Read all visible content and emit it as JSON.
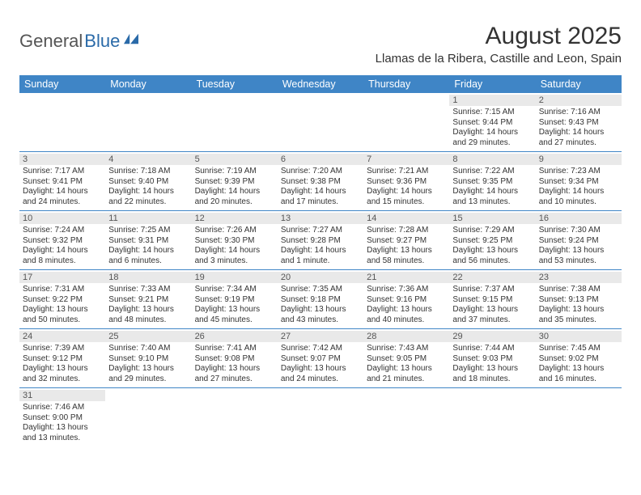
{
  "logo": {
    "part1": "General",
    "part2": "Blue"
  },
  "title": "August 2025",
  "subtitle": "Llamas de la Ribera, Castille and Leon, Spain",
  "colors": {
    "header_bg": "#3f85c6",
    "header_text": "#ffffff",
    "daynum_bg": "#e9e9e9",
    "border": "#3f85c6",
    "text": "#333333",
    "logo_gray": "#555555",
    "logo_blue": "#2a6aa8"
  },
  "dayNames": [
    "Sunday",
    "Monday",
    "Tuesday",
    "Wednesday",
    "Thursday",
    "Friday",
    "Saturday"
  ],
  "weeks": [
    [
      null,
      null,
      null,
      null,
      null,
      {
        "n": "1",
        "sr": "Sunrise: 7:15 AM",
        "ss": "Sunset: 9:44 PM",
        "d1": "Daylight: 14 hours",
        "d2": "and 29 minutes."
      },
      {
        "n": "2",
        "sr": "Sunrise: 7:16 AM",
        "ss": "Sunset: 9:43 PM",
        "d1": "Daylight: 14 hours",
        "d2": "and 27 minutes."
      }
    ],
    [
      {
        "n": "3",
        "sr": "Sunrise: 7:17 AM",
        "ss": "Sunset: 9:41 PM",
        "d1": "Daylight: 14 hours",
        "d2": "and 24 minutes."
      },
      {
        "n": "4",
        "sr": "Sunrise: 7:18 AM",
        "ss": "Sunset: 9:40 PM",
        "d1": "Daylight: 14 hours",
        "d2": "and 22 minutes."
      },
      {
        "n": "5",
        "sr": "Sunrise: 7:19 AM",
        "ss": "Sunset: 9:39 PM",
        "d1": "Daylight: 14 hours",
        "d2": "and 20 minutes."
      },
      {
        "n": "6",
        "sr": "Sunrise: 7:20 AM",
        "ss": "Sunset: 9:38 PM",
        "d1": "Daylight: 14 hours",
        "d2": "and 17 minutes."
      },
      {
        "n": "7",
        "sr": "Sunrise: 7:21 AM",
        "ss": "Sunset: 9:36 PM",
        "d1": "Daylight: 14 hours",
        "d2": "and 15 minutes."
      },
      {
        "n": "8",
        "sr": "Sunrise: 7:22 AM",
        "ss": "Sunset: 9:35 PM",
        "d1": "Daylight: 14 hours",
        "d2": "and 13 minutes."
      },
      {
        "n": "9",
        "sr": "Sunrise: 7:23 AM",
        "ss": "Sunset: 9:34 PM",
        "d1": "Daylight: 14 hours",
        "d2": "and 10 minutes."
      }
    ],
    [
      {
        "n": "10",
        "sr": "Sunrise: 7:24 AM",
        "ss": "Sunset: 9:32 PM",
        "d1": "Daylight: 14 hours",
        "d2": "and 8 minutes."
      },
      {
        "n": "11",
        "sr": "Sunrise: 7:25 AM",
        "ss": "Sunset: 9:31 PM",
        "d1": "Daylight: 14 hours",
        "d2": "and 6 minutes."
      },
      {
        "n": "12",
        "sr": "Sunrise: 7:26 AM",
        "ss": "Sunset: 9:30 PM",
        "d1": "Daylight: 14 hours",
        "d2": "and 3 minutes."
      },
      {
        "n": "13",
        "sr": "Sunrise: 7:27 AM",
        "ss": "Sunset: 9:28 PM",
        "d1": "Daylight: 14 hours",
        "d2": "and 1 minute."
      },
      {
        "n": "14",
        "sr": "Sunrise: 7:28 AM",
        "ss": "Sunset: 9:27 PM",
        "d1": "Daylight: 13 hours",
        "d2": "and 58 minutes."
      },
      {
        "n": "15",
        "sr": "Sunrise: 7:29 AM",
        "ss": "Sunset: 9:25 PM",
        "d1": "Daylight: 13 hours",
        "d2": "and 56 minutes."
      },
      {
        "n": "16",
        "sr": "Sunrise: 7:30 AM",
        "ss": "Sunset: 9:24 PM",
        "d1": "Daylight: 13 hours",
        "d2": "and 53 minutes."
      }
    ],
    [
      {
        "n": "17",
        "sr": "Sunrise: 7:31 AM",
        "ss": "Sunset: 9:22 PM",
        "d1": "Daylight: 13 hours",
        "d2": "and 50 minutes."
      },
      {
        "n": "18",
        "sr": "Sunrise: 7:33 AM",
        "ss": "Sunset: 9:21 PM",
        "d1": "Daylight: 13 hours",
        "d2": "and 48 minutes."
      },
      {
        "n": "19",
        "sr": "Sunrise: 7:34 AM",
        "ss": "Sunset: 9:19 PM",
        "d1": "Daylight: 13 hours",
        "d2": "and 45 minutes."
      },
      {
        "n": "20",
        "sr": "Sunrise: 7:35 AM",
        "ss": "Sunset: 9:18 PM",
        "d1": "Daylight: 13 hours",
        "d2": "and 43 minutes."
      },
      {
        "n": "21",
        "sr": "Sunrise: 7:36 AM",
        "ss": "Sunset: 9:16 PM",
        "d1": "Daylight: 13 hours",
        "d2": "and 40 minutes."
      },
      {
        "n": "22",
        "sr": "Sunrise: 7:37 AM",
        "ss": "Sunset: 9:15 PM",
        "d1": "Daylight: 13 hours",
        "d2": "and 37 minutes."
      },
      {
        "n": "23",
        "sr": "Sunrise: 7:38 AM",
        "ss": "Sunset: 9:13 PM",
        "d1": "Daylight: 13 hours",
        "d2": "and 35 minutes."
      }
    ],
    [
      {
        "n": "24",
        "sr": "Sunrise: 7:39 AM",
        "ss": "Sunset: 9:12 PM",
        "d1": "Daylight: 13 hours",
        "d2": "and 32 minutes."
      },
      {
        "n": "25",
        "sr": "Sunrise: 7:40 AM",
        "ss": "Sunset: 9:10 PM",
        "d1": "Daylight: 13 hours",
        "d2": "and 29 minutes."
      },
      {
        "n": "26",
        "sr": "Sunrise: 7:41 AM",
        "ss": "Sunset: 9:08 PM",
        "d1": "Daylight: 13 hours",
        "d2": "and 27 minutes."
      },
      {
        "n": "27",
        "sr": "Sunrise: 7:42 AM",
        "ss": "Sunset: 9:07 PM",
        "d1": "Daylight: 13 hours",
        "d2": "and 24 minutes."
      },
      {
        "n": "28",
        "sr": "Sunrise: 7:43 AM",
        "ss": "Sunset: 9:05 PM",
        "d1": "Daylight: 13 hours",
        "d2": "and 21 minutes."
      },
      {
        "n": "29",
        "sr": "Sunrise: 7:44 AM",
        "ss": "Sunset: 9:03 PM",
        "d1": "Daylight: 13 hours",
        "d2": "and 18 minutes."
      },
      {
        "n": "30",
        "sr": "Sunrise: 7:45 AM",
        "ss": "Sunset: 9:02 PM",
        "d1": "Daylight: 13 hours",
        "d2": "and 16 minutes."
      }
    ],
    [
      {
        "n": "31",
        "sr": "Sunrise: 7:46 AM",
        "ss": "Sunset: 9:00 PM",
        "d1": "Daylight: 13 hours",
        "d2": "and 13 minutes."
      },
      null,
      null,
      null,
      null,
      null,
      null
    ]
  ]
}
